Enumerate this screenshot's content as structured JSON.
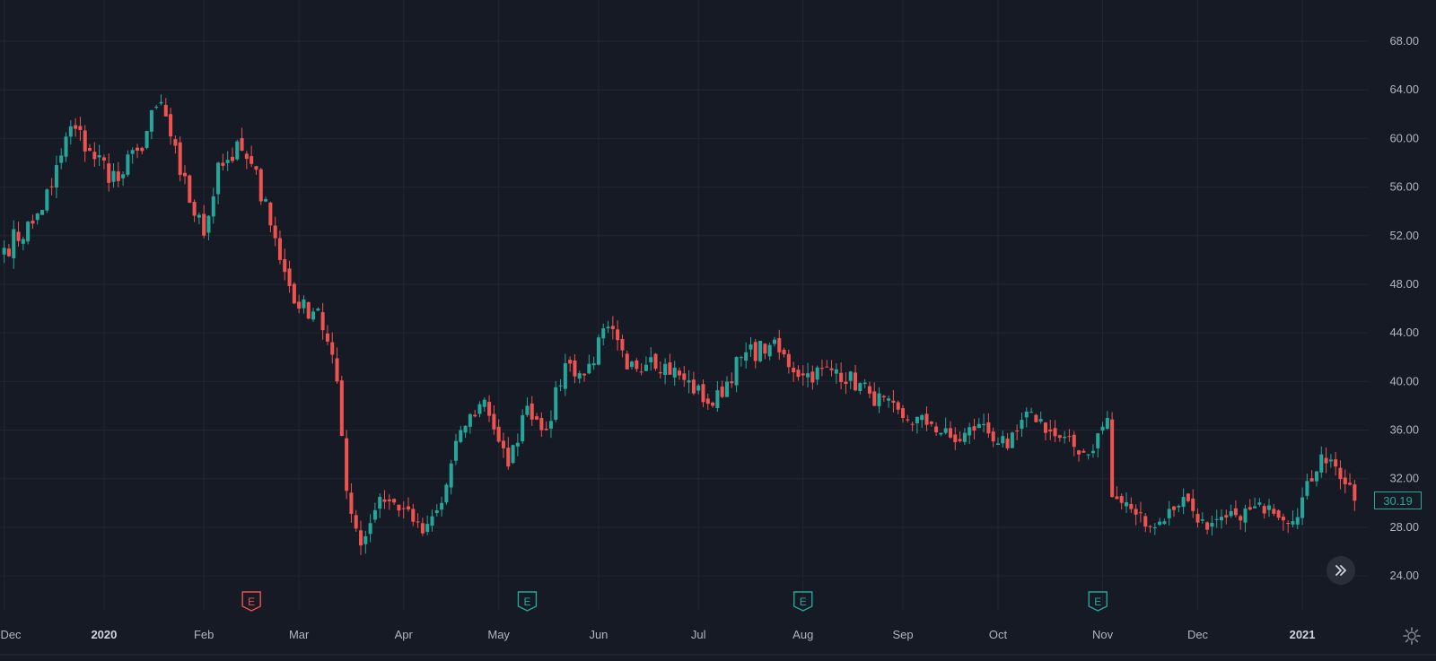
{
  "chart_data": {
    "type": "candlestick",
    "y_axis": {
      "ticks": [
        "68.00",
        "64.00",
        "60.00",
        "56.00",
        "52.00",
        "48.00",
        "44.00",
        "40.00",
        "36.00",
        "32.00",
        "28.00",
        "24.00"
      ],
      "range": [
        21.2,
        71.4
      ],
      "position": "right"
    },
    "x_axis": {
      "labels": [
        {
          "text": "Dec",
          "bold": false
        },
        {
          "text": "2020",
          "bold": true
        },
        {
          "text": "Feb",
          "bold": false
        },
        {
          "text": "Mar",
          "bold": false
        },
        {
          "text": "Apr",
          "bold": false
        },
        {
          "text": "May",
          "bold": false
        },
        {
          "text": "Jun",
          "bold": false
        },
        {
          "text": "Jul",
          "bold": false
        },
        {
          "text": "Aug",
          "bold": false
        },
        {
          "text": "Sep",
          "bold": false
        },
        {
          "text": "Oct",
          "bold": false
        },
        {
          "text": "Nov",
          "bold": false
        },
        {
          "text": "Dec",
          "bold": false
        },
        {
          "text": "2021",
          "bold": true
        }
      ],
      "label_bar_index": [
        0,
        21,
        42,
        62,
        84,
        104,
        125,
        146,
        168,
        189,
        209,
        231,
        251,
        273
      ]
    },
    "close_anchors": [
      {
        "bar": 0,
        "close": 51.0
      },
      {
        "bar": 6,
        "close": 53.0
      },
      {
        "bar": 10,
        "close": 56.0
      },
      {
        "bar": 14,
        "close": 61.0
      },
      {
        "bar": 18,
        "close": 59.0
      },
      {
        "bar": 24,
        "close": 56.5
      },
      {
        "bar": 28,
        "close": 59.0
      },
      {
        "bar": 33,
        "close": 63.0
      },
      {
        "bar": 37,
        "close": 57.0
      },
      {
        "bar": 42,
        "close": 52.0
      },
      {
        "bar": 45,
        "close": 58.0
      },
      {
        "bar": 50,
        "close": 59.0
      },
      {
        "bar": 55,
        "close": 55.0
      },
      {
        "bar": 58,
        "close": 50.0
      },
      {
        "bar": 62,
        "close": 46.0
      },
      {
        "bar": 66,
        "close": 46.0
      },
      {
        "bar": 70,
        "close": 40.0
      },
      {
        "bar": 72,
        "close": 31.0
      },
      {
        "bar": 75,
        "close": 26.5
      },
      {
        "bar": 79,
        "close": 30.5
      },
      {
        "bar": 84,
        "close": 29.5
      },
      {
        "bar": 88,
        "close": 27.5
      },
      {
        "bar": 92,
        "close": 30.0
      },
      {
        "bar": 96,
        "close": 36.0
      },
      {
        "bar": 101,
        "close": 38.5
      },
      {
        "bar": 106,
        "close": 33.0
      },
      {
        "bar": 110,
        "close": 38.0
      },
      {
        "bar": 114,
        "close": 36.0
      },
      {
        "bar": 118,
        "close": 41.5
      },
      {
        "bar": 122,
        "close": 40.5
      },
      {
        "bar": 127,
        "close": 44.5
      },
      {
        "bar": 131,
        "close": 41.0
      },
      {
        "bar": 136,
        "close": 42.0
      },
      {
        "bar": 142,
        "close": 40.5
      },
      {
        "bar": 149,
        "close": 38.0
      },
      {
        "bar": 155,
        "close": 42.0
      },
      {
        "bar": 161,
        "close": 43.0
      },
      {
        "bar": 168,
        "close": 40.5
      },
      {
        "bar": 175,
        "close": 41.0
      },
      {
        "bar": 182,
        "close": 39.0
      },
      {
        "bar": 189,
        "close": 37.0
      },
      {
        "bar": 195,
        "close": 36.5
      },
      {
        "bar": 200,
        "close": 35.0
      },
      {
        "bar": 205,
        "close": 36.5
      },
      {
        "bar": 211,
        "close": 34.5
      },
      {
        "bar": 216,
        "close": 37.5
      },
      {
        "bar": 221,
        "close": 35.5
      },
      {
        "bar": 228,
        "close": 34.0
      },
      {
        "bar": 232,
        "close": 37.0
      },
      {
        "bar": 233,
        "close": 30.5
      },
      {
        "bar": 237,
        "close": 29.5
      },
      {
        "bar": 242,
        "close": 28.0
      },
      {
        "bar": 248,
        "close": 30.5
      },
      {
        "bar": 253,
        "close": 27.8
      },
      {
        "bar": 259,
        "close": 29.0
      },
      {
        "bar": 266,
        "close": 29.8
      },
      {
        "bar": 271,
        "close": 28.5
      },
      {
        "bar": 277,
        "close": 34.0
      },
      {
        "bar": 280,
        "close": 33.0
      },
      {
        "bar": 284,
        "close": 30.19
      }
    ],
    "bar_count": 285,
    "last_price": "30.19",
    "up_color": "#26a69a",
    "down_color": "#ef5350",
    "background": "#161a25",
    "grid": true,
    "earnings_markers": [
      {
        "bar": 52,
        "label": "E",
        "color": "#ef5350"
      },
      {
        "bar": 110,
        "label": "E",
        "color": "#26a69a"
      },
      {
        "bar": 168,
        "label": "E",
        "color": "#26a69a"
      },
      {
        "bar": 230,
        "label": "E",
        "color": "#26a69a"
      }
    ]
  },
  "icons": {
    "scroll_to_realtime": "double-chevron-right-icon",
    "settings": "gear-icon"
  }
}
